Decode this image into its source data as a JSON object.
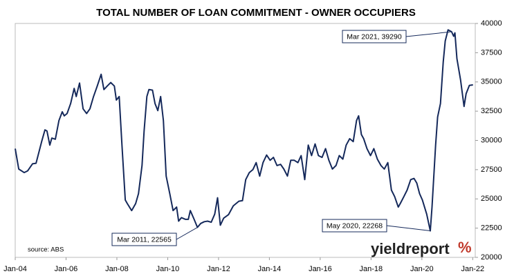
{
  "chart_data": {
    "type": "line",
    "title": "TOTAL NUMBER OF LOAN COMMITMENT - OWNER OCCUPIERS",
    "source": "source: ABS",
    "logo_text": "yieldreport",
    "logo_mark": "%",
    "xlim": [
      2004,
      2022.1
    ],
    "xticks": [
      {
        "value": 2004,
        "label": "Jan-04"
      },
      {
        "value": 2006,
        "label": "Jan-06"
      },
      {
        "value": 2008,
        "label": "Jan-08"
      },
      {
        "value": 2010,
        "label": "Jan-10"
      },
      {
        "value": 2012,
        "label": "Jan-12"
      },
      {
        "value": 2014,
        "label": "Jan-14"
      },
      {
        "value": 2016,
        "label": "Jan-16"
      },
      {
        "value": 2018,
        "label": "Jan-18"
      },
      {
        "value": 2020,
        "label": "Jan-20"
      },
      {
        "value": 2022,
        "label": "Jan-22"
      }
    ],
    "ylim": [
      20000,
      40000
    ],
    "yticks": [
      20000,
      22500,
      25000,
      27500,
      30000,
      32500,
      35000,
      37500,
      40000
    ],
    "annotations": [
      {
        "label": "Mar 2021, 39290",
        "x": 2021.17,
        "y": 39290
      },
      {
        "label": "Mar 2011, 22565",
        "x": 2011.17,
        "y": 22565
      },
      {
        "label": "May 2020, 22268",
        "x": 2020.33,
        "y": 22268
      }
    ],
    "x": [
      2004.0,
      2004.14,
      2004.35,
      2004.49,
      2004.68,
      2004.82,
      2005.04,
      2005.17,
      2005.25,
      2005.36,
      2005.44,
      2005.58,
      2005.72,
      2005.85,
      2005.93,
      2006.04,
      2006.18,
      2006.32,
      2006.4,
      2006.53,
      2006.67,
      2006.81,
      2006.94,
      2007.08,
      2007.22,
      2007.38,
      2007.49,
      2007.62,
      2007.76,
      2007.9,
      2007.98,
      2008.09,
      2008.2,
      2008.33,
      2008.41,
      2008.58,
      2008.74,
      2008.85,
      2008.99,
      2009.07,
      2009.18,
      2009.26,
      2009.4,
      2009.5,
      2009.61,
      2009.72,
      2009.83,
      2009.94,
      2010.08,
      2010.21,
      2010.35,
      2010.43,
      2010.54,
      2010.7,
      2010.81,
      2010.89,
      2011.03,
      2011.17,
      2011.3,
      2011.44,
      2011.57,
      2011.71,
      2011.85,
      2011.96,
      2012.07,
      2012.2,
      2012.39,
      2012.58,
      2012.8,
      2012.94,
      2013.07,
      2013.21,
      2013.35,
      2013.48,
      2013.62,
      2013.75,
      2013.89,
      2014.03,
      2014.16,
      2014.3,
      2014.44,
      2014.57,
      2014.71,
      2014.84,
      2014.98,
      2015.12,
      2015.25,
      2015.39,
      2015.53,
      2015.66,
      2015.8,
      2015.93,
      2016.07,
      2016.21,
      2016.34,
      2016.48,
      2016.62,
      2016.75,
      2016.89,
      2017.02,
      2017.16,
      2017.3,
      2017.43,
      2017.51,
      2017.62,
      2017.71,
      2017.84,
      2017.98,
      2018.11,
      2018.25,
      2018.39,
      2018.52,
      2018.66,
      2018.8,
      2018.93,
      2019.07,
      2019.15,
      2019.29,
      2019.42,
      2019.56,
      2019.69,
      2019.8,
      2019.91,
      2020.02,
      2020.19,
      2020.33,
      2020.4,
      2020.54,
      2020.62,
      2020.73,
      2020.84,
      2020.92,
      2021.03,
      2021.17,
      2021.25,
      2021.3,
      2021.38,
      2021.52,
      2021.66,
      2021.74,
      2021.87,
      2022.01
    ],
    "series": [
      {
        "name": "Owner occupiers",
        "color": "#14285a",
        "values": [
          29300,
          27550,
          27250,
          27400,
          28000,
          28050,
          29900,
          30900,
          30800,
          29600,
          30200,
          30100,
          31700,
          32450,
          32100,
          32300,
          33150,
          34450,
          33750,
          34900,
          32700,
          32300,
          32700,
          33750,
          34600,
          35650,
          34350,
          34650,
          34950,
          34650,
          33450,
          33750,
          29600,
          24900,
          24600,
          24000,
          24600,
          25450,
          27850,
          30800,
          33750,
          34350,
          34300,
          33150,
          32550,
          33750,
          31700,
          26950,
          25450,
          24000,
          24300,
          23100,
          23400,
          23250,
          23250,
          24000,
          23300,
          22565,
          22900,
          23050,
          23100,
          23000,
          23700,
          25100,
          22750,
          23350,
          23650,
          24400,
          24800,
          24850,
          26650,
          27250,
          27500,
          28100,
          26950,
          28100,
          28750,
          28300,
          28550,
          27850,
          27950,
          27550,
          26950,
          28300,
          28300,
          28100,
          28700,
          26650,
          29600,
          28700,
          29700,
          28700,
          28550,
          29300,
          28300,
          27550,
          27850,
          28700,
          28400,
          29600,
          30150,
          29900,
          31700,
          32100,
          30500,
          30150,
          29300,
          28700,
          29300,
          28400,
          27850,
          27550,
          28100,
          25750,
          25200,
          24300,
          24600,
          25200,
          25750,
          26650,
          26750,
          26350,
          25450,
          24900,
          23700,
          22268,
          24300,
          29600,
          32000,
          33150,
          36700,
          38500,
          39450,
          39290,
          38900,
          39200,
          37000,
          35200,
          32900,
          34000,
          34700,
          34750
        ]
      }
    ]
  }
}
